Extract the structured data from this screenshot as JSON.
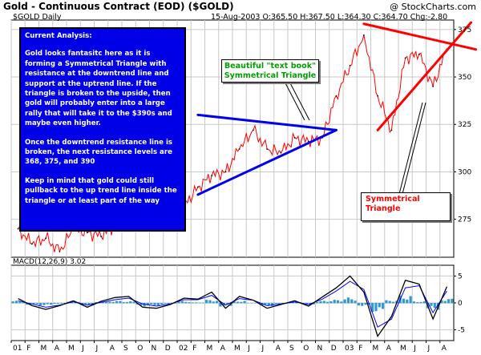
{
  "header": {
    "title": "Gold - Continuous Contract (EOD) ($GOLD)",
    "watermark": "@ StockCharts.com",
    "symbol": "$GOLD Daily",
    "quote": "15-Aug-2003 O:365.50 H:367.50 L:364.30 C:364.70 Chg:-2.80"
  },
  "analysis": {
    "heading": "Current Analysis:",
    "paragraphs": [
      "Gold looks fantasitc here as it is forming a Symmetrical Triangle with resistance at the downtrend line and support at the uptrend line. If the triangle is broken to the upside, then gold will probably enter into a large rally that will take it to the $390s and maybe even higher.",
      "Once the downtrend resistance line is broken, the next resistance levels are 368, 375, and 390",
      "Keep in mind that gold could still pullback to the up trend line inside the triangle or at least part of the way"
    ]
  },
  "annotations": {
    "textbook": "Beautiful \"text book\" Symmetrical Triangle",
    "symmetrical": "Symmetrical Triangle"
  },
  "colors": {
    "price": "#ff0000",
    "blue_lines": "#0000ee",
    "red_lines": "#ff0000",
    "grid": "#c8c8c8",
    "histogram": "#3399cc",
    "analysis_bg": "#0000e6"
  },
  "chart_data": [
    {
      "type": "line",
      "title": "Gold - Continuous Contract (EOD) ($GOLD)",
      "series": [
        {
          "x": [
            "2001-01",
            "2001-02",
            "2001-03",
            "2001-04",
            "2001-05",
            "2001-06",
            "2001-07",
            "2001-08",
            "2001-09",
            "2001-10",
            "2001-11",
            "2001-12",
            "2002-01",
            "2002-02",
            "2002-03",
            "2002-04",
            "2002-05",
            "2002-06",
            "2002-07",
            "2002-08",
            "2002-09",
            "2002-10",
            "2002-11",
            "2002-12",
            "2003-01",
            "2003-02",
            "2003-03",
            "2003-04",
            "2003-05",
            "2003-06",
            "2003-07",
            "2003-08"
          ],
          "values": [
            270,
            262,
            265,
            258,
            270,
            268,
            266,
            272,
            285,
            280,
            276,
            278,
            282,
            292,
            298,
            300,
            312,
            322,
            312,
            310,
            318,
            316,
            318,
            340,
            356,
            372,
            340,
            322,
            360,
            362,
            345,
            364.7
          ]
        }
      ],
      "ylim": [
        255,
        380
      ],
      "y_ticks": [
        275,
        300,
        325,
        350,
        375
      ],
      "x_tick_labels": [
        "01",
        "F",
        "M",
        "A",
        "M",
        "J",
        "J",
        "A",
        "S",
        "O",
        "N",
        "D",
        "02",
        "F",
        "M",
        "A",
        "M",
        "J",
        "J",
        "A",
        "S",
        "O",
        "N",
        "D",
        "03",
        "F",
        "M",
        "A",
        "M",
        "J",
        "J",
        "A"
      ],
      "trendlines": [
        {
          "name": "2002 resistance",
          "color": "blue",
          "from": [
            "2002-02",
            330
          ],
          "to": [
            "2002-12",
            322
          ]
        },
        {
          "name": "2002 support",
          "color": "blue",
          "from": [
            "2002-02",
            288
          ],
          "to": [
            "2002-12",
            322
          ]
        },
        {
          "name": "2003 resistance",
          "color": "red",
          "from": [
            "2003-02",
            378
          ],
          "to": [
            "2003-08",
            368
          ]
        },
        {
          "name": "2003 support",
          "color": "red",
          "from": [
            "2003-03",
            322
          ],
          "to": [
            "2003-08",
            364
          ]
        }
      ],
      "grid": true
    },
    {
      "type": "line",
      "title": "MACD(12,26,9) 3.02",
      "series": [
        {
          "name": "MACD",
          "values": [
            0.8,
            -0.5,
            -1.2,
            -0.5,
            0.4,
            -0.8,
            0.3,
            1.0,
            1.2,
            -0.8,
            -1.0,
            -0.3,
            0.9,
            0.7,
            2.0,
            -1.0,
            1.2,
            0.5,
            -1.0,
            -0.3,
            0.4,
            -0.6,
            1.1,
            2.8,
            5.0,
            2.0,
            -6.2,
            -2.5,
            4.2,
            3.5,
            -3.0,
            3.02
          ]
        },
        {
          "name": "Signal",
          "values": [
            0.4,
            -0.2,
            -0.8,
            -0.4,
            0.2,
            -0.4,
            0.1,
            0.6,
            0.9,
            -0.2,
            -0.6,
            -0.2,
            0.6,
            0.6,
            1.4,
            -0.4,
            0.8,
            0.5,
            -0.5,
            -0.2,
            0.2,
            -0.3,
            0.7,
            2.2,
            4.0,
            2.5,
            -4.5,
            -3.0,
            2.8,
            3.2,
            -1.8,
            2.2
          ]
        }
      ],
      "ylim": [
        -7,
        7
      ],
      "y_ticks": [
        -5,
        0,
        5
      ]
    }
  ]
}
